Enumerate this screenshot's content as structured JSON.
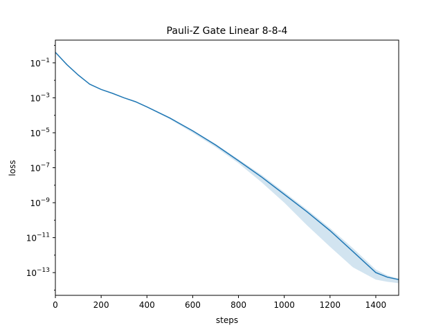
{
  "chart_data": {
    "type": "line",
    "title": "Pauli-Z Gate Linear 8-8-4",
    "xlabel": "steps",
    "ylabel": "loss",
    "yscale": "log",
    "xlim": [
      0,
      1500
    ],
    "ylim_exp": [
      -14.3,
      0.3
    ],
    "x_ticks": [
      0,
      200,
      400,
      600,
      800,
      1000,
      1200,
      1400
    ],
    "y_tick_exponents": [
      -1,
      -3,
      -5,
      -7,
      -9,
      -11,
      -13
    ],
    "y_tick_base": "10",
    "grid": false,
    "legend": "none",
    "colors": {
      "line": "#1f77b4",
      "band": "#1f77b4"
    },
    "series": [
      {
        "x": [
          0,
          50,
          100,
          150,
          200,
          250,
          300,
          350,
          400,
          500,
          600,
          700,
          800,
          900,
          1000,
          1100,
          1200,
          1300,
          1400,
          1450,
          1500
        ],
        "y": [
          0.4,
          0.08,
          0.02,
          0.006,
          0.003,
          0.0018,
          0.001,
          0.0006,
          0.0003,
          7e-05,
          1.3e-05,
          2e-06,
          2.5e-07,
          3e-08,
          3e-09,
          3e-10,
          2.5e-11,
          1.6e-12,
          1e-13,
          5.5e-14,
          4e-14
        ],
        "lower": [
          0.4,
          0.08,
          0.02,
          0.006,
          0.003,
          0.0017,
          0.00095,
          0.00055,
          0.00028,
          6e-05,
          1e-05,
          1.5e-06,
          1.8e-07,
          1.5e-08,
          1e-09,
          5e-11,
          3e-12,
          2e-13,
          4e-14,
          3e-14,
          2.5e-14
        ],
        "upper": [
          0.4,
          0.08,
          0.02,
          0.006,
          0.003,
          0.0018,
          0.001,
          0.0006,
          0.00031,
          7e-05,
          1.4e-05,
          2.3e-06,
          3e-07,
          4e-08,
          4e-09,
          4e-10,
          3.5e-11,
          2.5e-12,
          1.5e-13,
          7e-14,
          4.5e-14
        ]
      }
    ]
  }
}
